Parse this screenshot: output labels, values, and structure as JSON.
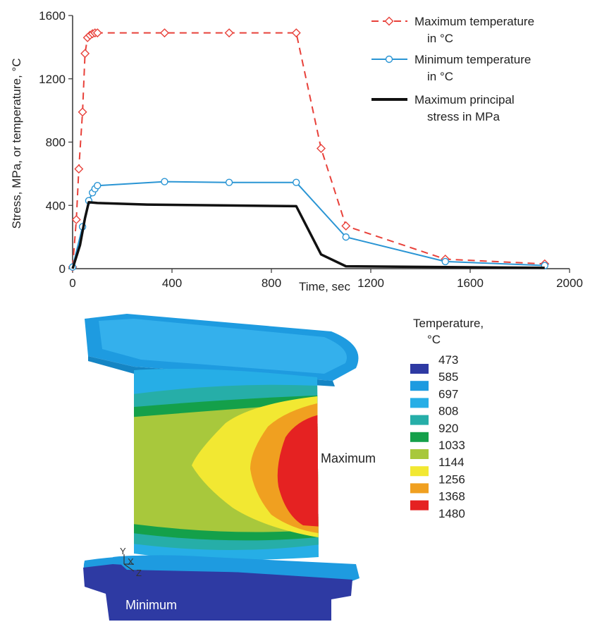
{
  "chart_data": {
    "type": "line",
    "title": "",
    "xlabel": "Time, sec",
    "ylabel": "Stress, MPa, or temperature, °C",
    "xlim": [
      0,
      2000
    ],
    "ylim": [
      0,
      1600
    ],
    "xticks": [
      "0",
      "400",
      "800",
      "1200",
      "1600",
      "2000"
    ],
    "yticks": [
      "0",
      "400",
      "800",
      "1200",
      "1600"
    ],
    "grid": false,
    "legend_position": "top-right",
    "series": [
      {
        "name": "Maximum temperature in °C",
        "legend_lines": [
          "Maximum temperature",
          "in °C"
        ],
        "color": "#e8413a",
        "style": "dashed",
        "marker": "diamond",
        "points": [
          [
            0,
            10
          ],
          [
            15,
            310
          ],
          [
            25,
            630
          ],
          [
            40,
            990
          ],
          [
            50,
            1360
          ],
          [
            60,
            1460
          ],
          [
            70,
            1475
          ],
          [
            80,
            1485
          ],
          [
            90,
            1490
          ],
          [
            100,
            1490
          ],
          [
            370,
            1490
          ],
          [
            630,
            1490
          ],
          [
            900,
            1490
          ],
          [
            1000,
            760
          ],
          [
            1100,
            270
          ],
          [
            1500,
            60
          ],
          [
            1900,
            30
          ]
        ]
      },
      {
        "name": "Minimum temperature in °C",
        "legend_lines": [
          "Minimum temperature",
          "in °C"
        ],
        "color": "#2a95d4",
        "style": "solid",
        "marker": "circle",
        "points": [
          [
            0,
            10
          ],
          [
            40,
            265
          ],
          [
            65,
            430
          ],
          [
            80,
            480
          ],
          [
            90,
            505
          ],
          [
            100,
            525
          ],
          [
            370,
            550
          ],
          [
            630,
            545
          ],
          [
            900,
            545
          ],
          [
            1100,
            200
          ],
          [
            1500,
            45
          ],
          [
            1900,
            20
          ]
        ]
      },
      {
        "name": "Maximum principal stress in MPa",
        "legend_lines": [
          "Maximum principal",
          "stress in MPa"
        ],
        "color": "#111111",
        "style": "solid",
        "marker": "none",
        "points": [
          [
            0,
            0
          ],
          [
            30,
            150
          ],
          [
            50,
            320
          ],
          [
            65,
            420
          ],
          [
            100,
            415
          ],
          [
            300,
            405
          ],
          [
            600,
            400
          ],
          [
            900,
            395
          ],
          [
            1000,
            90
          ],
          [
            1100,
            15
          ],
          [
            1500,
            10
          ],
          [
            1900,
            5
          ]
        ]
      }
    ]
  },
  "contour": {
    "legend_title_lines": [
      "Temperature,",
      "°C"
    ],
    "levels": [
      "473",
      "585",
      "697",
      "808",
      "920",
      "1033",
      "1144",
      "1256",
      "1368",
      "1480"
    ],
    "swatch_colors": [
      "#2e3aa3",
      "#1e9be0",
      "#26aee6",
      "#26aea8",
      "#14a04a",
      "#a8c83c",
      "#f2e832",
      "#f0a020",
      "#e52222"
    ],
    "label_max": "Maximum",
    "label_min": "Minimum",
    "axis_triad": [
      "Y",
      "X",
      "Z"
    ]
  }
}
